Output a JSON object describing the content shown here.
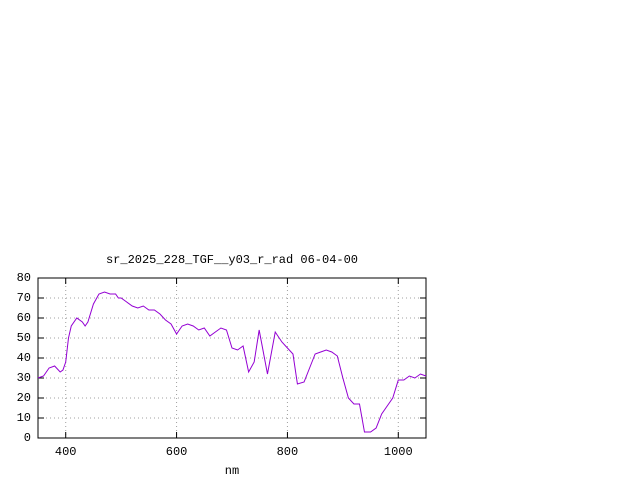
{
  "chart_data": {
    "type": "line",
    "title": "sr_2025_228_TGF__y03_r_rad 06-04-00",
    "x_label": "nm",
    "x": [
      350,
      360,
      370,
      380,
      390,
      395,
      400,
      405,
      410,
      420,
      430,
      435,
      440,
      450,
      460,
      470,
      480,
      490,
      495,
      500,
      510,
      520,
      530,
      540,
      550,
      560,
      570,
      580,
      590,
      600,
      610,
      620,
      630,
      640,
      650,
      660,
      670,
      680,
      690,
      700,
      710,
      720,
      730,
      740,
      749,
      764,
      778,
      790,
      800,
      810,
      818,
      830,
      840,
      850,
      860,
      870,
      880,
      890,
      900,
      910,
      920,
      930,
      939,
      950,
      960,
      970,
      980,
      990,
      1000,
      1010,
      1020,
      1030,
      1040,
      1050
    ],
    "series": [
      {
        "name": "sr_2025_228_TGF__y03_r_rad",
        "color": "#9400d3",
        "values": [
          30,
          31,
          35,
          36,
          33,
          34,
          38,
          50,
          56,
          60,
          58,
          56,
          58,
          67,
          72,
          73,
          72,
          72,
          70,
          70,
          68,
          66,
          65,
          66,
          64,
          64,
          62,
          59,
          57,
          52,
          56,
          57,
          56,
          54,
          55,
          51,
          53,
          55,
          54,
          45,
          44,
          46,
          33,
          38,
          54,
          32,
          53,
          48,
          45,
          42,
          27,
          28,
          35,
          42,
          43,
          44,
          43,
          41,
          30,
          20,
          17,
          17,
          3,
          3,
          5,
          12,
          16,
          20,
          29,
          29,
          31,
          30,
          32,
          31
        ]
      }
    ],
    "xlim": [
      350,
      1050
    ],
    "ylim": [
      0,
      80
    ],
    "xticks": [
      400,
      600,
      800,
      1000
    ],
    "yticks": [
      0,
      10,
      20,
      30,
      40,
      50,
      60,
      70,
      80
    ],
    "grid": true
  }
}
